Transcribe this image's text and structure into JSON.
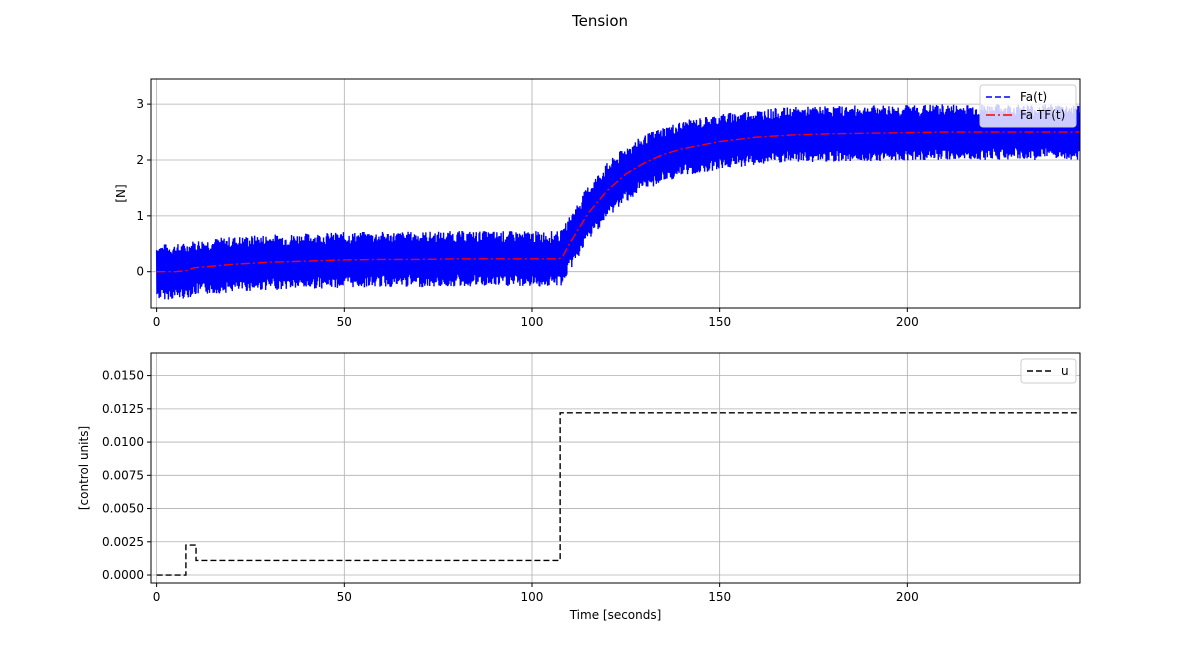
{
  "figure": {
    "title": "Tension"
  },
  "chart_data": [
    {
      "type": "line",
      "title": "",
      "xlabel": "",
      "ylabel": "[N]",
      "xlim": [
        -1.5,
        246
      ],
      "ylim": [
        -0.65,
        3.45
      ],
      "xticks": [
        0,
        50,
        100,
        150,
        200
      ],
      "yticks": [
        0,
        1,
        2,
        3
      ],
      "grid": true,
      "legend": "top-right",
      "series": [
        {
          "name": "Fa(t)",
          "style": "dashed",
          "color": "#0000ff",
          "band_halfwidth": 0.5,
          "x": [
            0,
            5,
            8,
            10,
            20,
            30,
            40,
            50,
            60,
            70,
            80,
            90,
            100,
            107,
            108,
            110,
            115,
            120,
            125,
            130,
            135,
            140,
            150,
            160,
            170,
            180,
            190,
            200,
            210,
            220,
            230,
            246
          ],
          "y": [
            0.0,
            0.0,
            0.02,
            0.07,
            0.13,
            0.17,
            0.19,
            0.21,
            0.22,
            0.22,
            0.23,
            0.23,
            0.23,
            0.23,
            0.25,
            0.5,
            1.05,
            1.45,
            1.75,
            1.95,
            2.1,
            2.2,
            2.33,
            2.41,
            2.45,
            2.47,
            2.48,
            2.49,
            2.5,
            2.5,
            2.5,
            2.5
          ]
        },
        {
          "name": "Fa TF(t)",
          "style": "dashdot",
          "color": "#ff0000",
          "x": [
            0,
            5,
            8,
            10,
            20,
            30,
            40,
            50,
            60,
            70,
            80,
            90,
            100,
            107,
            108,
            110,
            115,
            120,
            125,
            130,
            135,
            140,
            150,
            160,
            170,
            180,
            190,
            200,
            210,
            220,
            230,
            246
          ],
          "y": [
            0.0,
            0.0,
            0.02,
            0.07,
            0.13,
            0.17,
            0.19,
            0.21,
            0.22,
            0.22,
            0.23,
            0.23,
            0.23,
            0.23,
            0.25,
            0.5,
            1.05,
            1.45,
            1.75,
            1.95,
            2.1,
            2.2,
            2.33,
            2.41,
            2.45,
            2.47,
            2.48,
            2.49,
            2.5,
            2.5,
            2.5,
            2.5
          ]
        }
      ]
    },
    {
      "type": "line",
      "title": "",
      "xlabel": "Time [seconds]",
      "ylabel": "[control units]",
      "xlim": [
        -1.5,
        246
      ],
      "ylim": [
        -0.0006,
        0.0167
      ],
      "xticks": [
        0,
        50,
        100,
        150,
        200
      ],
      "yticks": [
        0.0,
        0.0025,
        0.005,
        0.0075,
        0.01,
        0.0125,
        0.015
      ],
      "ytick_labels": [
        "0.0000",
        "0.0025",
        "0.0050",
        "0.0075",
        "0.0100",
        "0.0125",
        "0.0150"
      ],
      "grid": true,
      "legend": "top-right",
      "series": [
        {
          "name": "u",
          "style": "dashed",
          "color": "#000000",
          "x": [
            0,
            7.8,
            7.8,
            10.5,
            10.5,
            107.5,
            107.5,
            246
          ],
          "y": [
            0.0,
            0.0,
            0.00225,
            0.00225,
            0.0011,
            0.0011,
            0.0122,
            0.0122
          ]
        }
      ]
    }
  ]
}
